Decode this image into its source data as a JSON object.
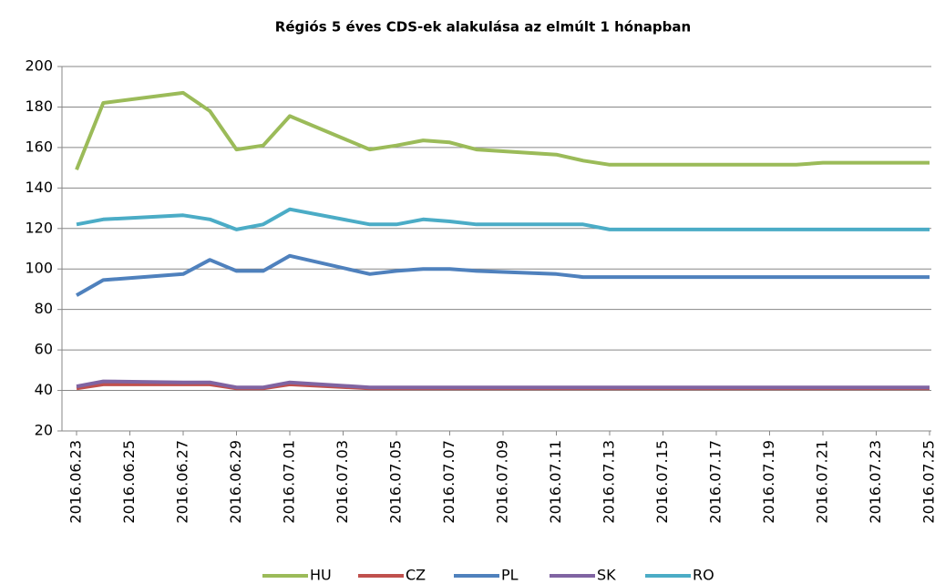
{
  "chart_data": {
    "type": "line",
    "title": "Régiós 5 éves CDS-ek alakulása az elmúlt 1 hónapban",
    "x": [
      "2016.06.23",
      "2016.06.24",
      "2016.06.27",
      "2016.06.28",
      "2016.06.29",
      "2016.06.30",
      "2016.07.01",
      "2016.07.04",
      "2016.07.05",
      "2016.07.06",
      "2016.07.07",
      "2016.07.08",
      "2016.07.11",
      "2016.07.12",
      "2016.07.13",
      "2016.07.14",
      "2016.07.15",
      "2016.07.18",
      "2016.07.19",
      "2016.07.20",
      "2016.07.21",
      "2016.07.22",
      "2016.07.25"
    ],
    "series": [
      {
        "name": "HU",
        "color": "#9bbb59",
        "values": [
          149,
          182,
          187,
          178,
          159,
          161,
          175.5,
          159,
          161,
          163.5,
          162.5,
          159,
          156.5,
          153.5,
          151.5,
          151.5,
          151.5,
          151.5,
          151.5,
          151.5,
          152.5,
          152.5,
          152.5
        ]
      },
      {
        "name": "CZ",
        "color": "#c0504d",
        "values": [
          41,
          43,
          43,
          43,
          41,
          41,
          43,
          41,
          41,
          41,
          41,
          41,
          41,
          41,
          41,
          41,
          41,
          41,
          41,
          41,
          41,
          41,
          41
        ]
      },
      {
        "name": "PL",
        "color": "#4f81bd",
        "values": [
          87,
          94.5,
          97.5,
          104.5,
          99,
          99,
          106.5,
          97.5,
          99,
          100,
          100,
          99,
          97.5,
          96,
          96,
          96,
          96,
          96,
          96,
          96,
          96,
          96,
          96
        ]
      },
      {
        "name": "SK",
        "color": "#8064a2",
        "values": [
          42,
          44.5,
          44,
          44,
          41.5,
          41.5,
          44,
          41.5,
          41.5,
          41.5,
          41.5,
          41.5,
          41.5,
          41.5,
          41.5,
          41.5,
          41.5,
          41.5,
          41.5,
          41.5,
          41.5,
          41.5,
          41.5
        ]
      },
      {
        "name": "RO",
        "color": "#4bacc6",
        "values": [
          122,
          124.5,
          126.5,
          124.5,
          119.5,
          122,
          129.5,
          122,
          122,
          124.5,
          123.5,
          122,
          122,
          122,
          119.5,
          119.5,
          119.5,
          119.5,
          119.5,
          119.5,
          119.5,
          119.5,
          119.5
        ]
      }
    ],
    "xlim": [
      "2016.06.23",
      "2016.07.25"
    ],
    "xticks": [
      "2016.06.23",
      "2016.06.25",
      "2016.06.27",
      "2016.06.29",
      "2016.07.01",
      "2016.07.03",
      "2016.07.05",
      "2016.07.07",
      "2016.07.09",
      "2016.07.11",
      "2016.07.13",
      "2016.07.15",
      "2016.07.17",
      "2016.07.19",
      "2016.07.21",
      "2016.07.23",
      "2016.07.25"
    ],
    "ylim": [
      20,
      200
    ],
    "yticks": [
      20,
      40,
      60,
      80,
      100,
      120,
      140,
      160,
      180,
      200
    ],
    "grid": true,
    "legend": "bottom"
  }
}
